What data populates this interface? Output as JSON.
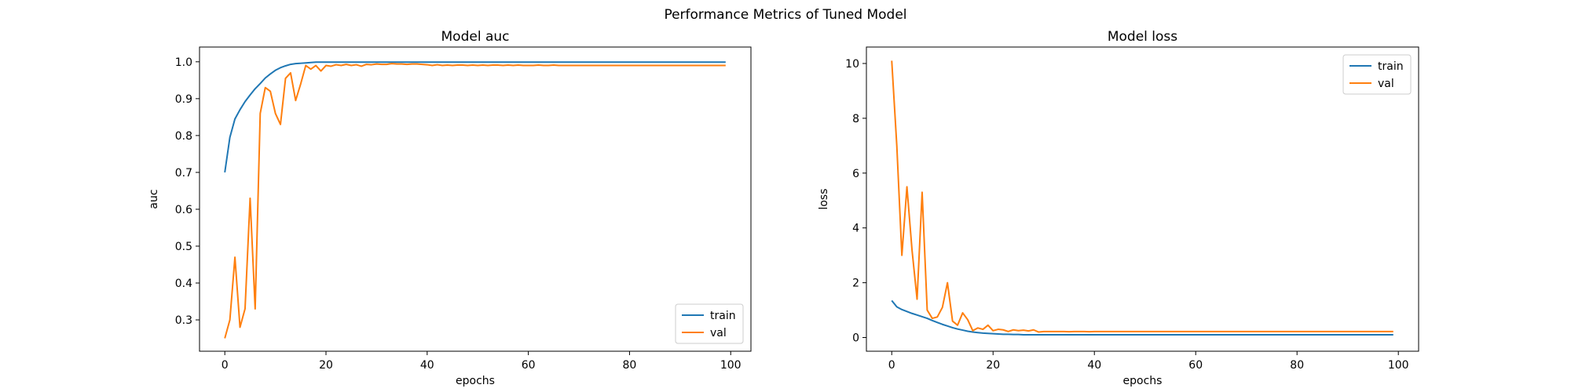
{
  "figure": {
    "suptitle": "Performance Metrics of Tuned Model"
  },
  "colors": {
    "train": "#1f77b4",
    "val": "#ff7f0e"
  },
  "chart_data": [
    {
      "type": "line",
      "title": "Model auc",
      "xlabel": "epochs",
      "ylabel": "auc",
      "xlim": [
        -5,
        104
      ],
      "ylim": [
        0.215,
        1.04
      ],
      "xticks": [
        0,
        20,
        40,
        60,
        80,
        100
      ],
      "yticks": [
        0.3,
        0.4,
        0.5,
        0.6,
        0.7,
        0.8,
        0.9,
        1.0
      ],
      "ytick_labels": [
        "0.3",
        "0.4",
        "0.5",
        "0.6",
        "0.7",
        "0.8",
        "0.9",
        "1.0"
      ],
      "legend": "lower right",
      "grid": false,
      "x": [
        0,
        1,
        2,
        3,
        4,
        5,
        6,
        7,
        8,
        9,
        10,
        11,
        12,
        13,
        14,
        15,
        16,
        17,
        18,
        19,
        20,
        21,
        22,
        23,
        24,
        25,
        26,
        27,
        28,
        29,
        30,
        31,
        32,
        33,
        34,
        35,
        36,
        37,
        38,
        39,
        40,
        41,
        42,
        43,
        44,
        45,
        46,
        47,
        48,
        49,
        50,
        51,
        52,
        53,
        54,
        55,
        56,
        57,
        58,
        59,
        60,
        61,
        62,
        63,
        64,
        65,
        66,
        67,
        68,
        69,
        70,
        71,
        72,
        73,
        74,
        75,
        76,
        77,
        78,
        79,
        80,
        81,
        82,
        83,
        84,
        85,
        86,
        87,
        88,
        89,
        90,
        91,
        92,
        93,
        94,
        95,
        96,
        97,
        98,
        99
      ],
      "series": [
        {
          "name": "train",
          "values": [
            0.7,
            0.795,
            0.845,
            0.87,
            0.892,
            0.91,
            0.927,
            0.941,
            0.956,
            0.967,
            0.977,
            0.984,
            0.989,
            0.993,
            0.995,
            0.996,
            0.997,
            0.998,
            0.999,
            0.999,
            0.999,
            0.999,
            0.999,
            0.999,
            0.999,
            0.999,
            0.999,
            0.999,
            0.999,
            0.999,
            0.999,
            0.999,
            0.999,
            0.999,
            0.999,
            0.999,
            0.999,
            0.999,
            0.999,
            0.999,
            0.999,
            0.999,
            0.999,
            0.999,
            0.999,
            0.999,
            0.999,
            0.999,
            0.999,
            0.999,
            0.999,
            0.999,
            0.999,
            0.999,
            0.999,
            0.999,
            0.999,
            0.999,
            0.999,
            0.999,
            0.999,
            0.999,
            0.999,
            0.999,
            0.999,
            0.999,
            0.999,
            0.999,
            0.999,
            0.999,
            0.999,
            0.999,
            0.999,
            0.999,
            0.999,
            0.999,
            0.999,
            0.999,
            0.999,
            0.999,
            0.999,
            0.999,
            0.999,
            0.999,
            0.999,
            0.999,
            0.999,
            0.999,
            0.999,
            0.999,
            0.999,
            0.999,
            0.999,
            0.999,
            0.999,
            0.999,
            0.999,
            0.999,
            0.999,
            0.999
          ]
        },
        {
          "name": "val",
          "values": [
            0.25,
            0.3,
            0.47,
            0.28,
            0.33,
            0.63,
            0.33,
            0.86,
            0.93,
            0.92,
            0.86,
            0.83,
            0.955,
            0.97,
            0.895,
            0.94,
            0.99,
            0.98,
            0.99,
            0.975,
            0.99,
            0.988,
            0.992,
            0.99,
            0.993,
            0.99,
            0.992,
            0.988,
            0.993,
            0.992,
            0.994,
            0.993,
            0.993,
            0.995,
            0.994,
            0.994,
            0.993,
            0.994,
            0.994,
            0.993,
            0.992,
            0.99,
            0.992,
            0.99,
            0.991,
            0.99,
            0.991,
            0.991,
            0.99,
            0.991,
            0.99,
            0.991,
            0.99,
            0.991,
            0.991,
            0.99,
            0.991,
            0.99,
            0.991,
            0.99,
            0.99,
            0.99,
            0.991,
            0.99,
            0.99,
            0.991,
            0.99,
            0.99,
            0.99,
            0.99,
            0.99,
            0.99,
            0.99,
            0.99,
            0.99,
            0.99,
            0.99,
            0.99,
            0.99,
            0.99,
            0.99,
            0.99,
            0.99,
            0.99,
            0.99,
            0.99,
            0.99,
            0.99,
            0.99,
            0.99,
            0.99,
            0.99,
            0.99,
            0.99,
            0.99,
            0.99,
            0.99,
            0.99,
            0.99,
            0.99
          ]
        }
      ]
    },
    {
      "type": "line",
      "title": "Model loss",
      "xlabel": "epochs",
      "ylabel": "loss",
      "xlim": [
        -5,
        104
      ],
      "ylim": [
        -0.5,
        10.6
      ],
      "xticks": [
        0,
        20,
        40,
        60,
        80,
        100
      ],
      "yticks": [
        0,
        2,
        4,
        6,
        8,
        10
      ],
      "ytick_labels": [
        "0",
        "2",
        "4",
        "6",
        "8",
        "10"
      ],
      "legend": "upper right",
      "grid": false,
      "x": [
        0,
        1,
        2,
        3,
        4,
        5,
        6,
        7,
        8,
        9,
        10,
        11,
        12,
        13,
        14,
        15,
        16,
        17,
        18,
        19,
        20,
        21,
        22,
        23,
        24,
        25,
        26,
        27,
        28,
        29,
        30,
        31,
        32,
        33,
        34,
        35,
        36,
        37,
        38,
        39,
        40,
        41,
        42,
        43,
        44,
        45,
        46,
        47,
        48,
        49,
        50,
        51,
        52,
        53,
        54,
        55,
        56,
        57,
        58,
        59,
        60,
        61,
        62,
        63,
        64,
        65,
        66,
        67,
        68,
        69,
        70,
        71,
        72,
        73,
        74,
        75,
        76,
        77,
        78,
        79,
        80,
        81,
        82,
        83,
        84,
        85,
        86,
        87,
        88,
        89,
        90,
        91,
        92,
        93,
        94,
        95,
        96,
        97,
        98,
        99
      ],
      "series": [
        {
          "name": "train",
          "values": [
            1.35,
            1.12,
            1.02,
            0.95,
            0.88,
            0.82,
            0.76,
            0.7,
            0.62,
            0.55,
            0.48,
            0.42,
            0.36,
            0.31,
            0.27,
            0.23,
            0.2,
            0.18,
            0.16,
            0.15,
            0.14,
            0.13,
            0.12,
            0.12,
            0.11,
            0.11,
            0.1,
            0.1,
            0.1,
            0.1,
            0.1,
            0.1,
            0.1,
            0.1,
            0.1,
            0.1,
            0.1,
            0.1,
            0.1,
            0.1,
            0.1,
            0.1,
            0.1,
            0.1,
            0.1,
            0.1,
            0.1,
            0.1,
            0.1,
            0.1,
            0.1,
            0.1,
            0.1,
            0.1,
            0.1,
            0.1,
            0.1,
            0.1,
            0.1,
            0.1,
            0.1,
            0.1,
            0.1,
            0.1,
            0.1,
            0.1,
            0.1,
            0.1,
            0.1,
            0.1,
            0.1,
            0.1,
            0.1,
            0.1,
            0.1,
            0.1,
            0.1,
            0.1,
            0.1,
            0.1,
            0.1,
            0.1,
            0.1,
            0.1,
            0.1,
            0.1,
            0.1,
            0.1,
            0.1,
            0.1,
            0.1,
            0.1,
            0.1,
            0.1,
            0.1,
            0.1,
            0.1,
            0.1,
            0.1,
            0.1
          ]
        },
        {
          "name": "val",
          "values": [
            10.1,
            7.0,
            3.0,
            5.5,
            3.2,
            1.4,
            5.3,
            1.0,
            0.7,
            0.75,
            1.1,
            2.0,
            0.6,
            0.45,
            0.9,
            0.65,
            0.25,
            0.35,
            0.3,
            0.45,
            0.25,
            0.3,
            0.28,
            0.22,
            0.28,
            0.25,
            0.27,
            0.24,
            0.28,
            0.2,
            0.22,
            0.22,
            0.22,
            0.22,
            0.22,
            0.21,
            0.22,
            0.22,
            0.22,
            0.21,
            0.22,
            0.22,
            0.22,
            0.22,
            0.22,
            0.22,
            0.22,
            0.22,
            0.22,
            0.22,
            0.22,
            0.22,
            0.22,
            0.22,
            0.22,
            0.22,
            0.22,
            0.22,
            0.22,
            0.22,
            0.22,
            0.22,
            0.22,
            0.22,
            0.22,
            0.22,
            0.22,
            0.22,
            0.22,
            0.22,
            0.22,
            0.22,
            0.22,
            0.22,
            0.22,
            0.22,
            0.22,
            0.22,
            0.22,
            0.22,
            0.22,
            0.22,
            0.22,
            0.22,
            0.22,
            0.22,
            0.22,
            0.22,
            0.22,
            0.22,
            0.22,
            0.22,
            0.22,
            0.22,
            0.22,
            0.22,
            0.22,
            0.22,
            0.22,
            0.22
          ]
        }
      ]
    }
  ]
}
